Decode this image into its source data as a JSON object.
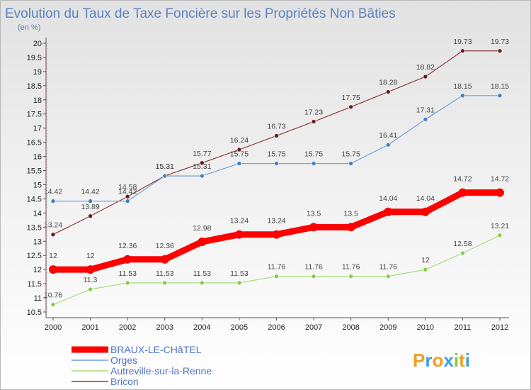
{
  "chart_data": {
    "type": "line",
    "title": "Evolution du Taux de Taxe Foncière sur les Propriétés Non Bâties",
    "subtitle": "(en %)",
    "x": [
      "2000",
      "2001",
      "2002",
      "2003",
      "2004",
      "2005",
      "2006",
      "2007",
      "2008",
      "2009",
      "2010",
      "2011",
      "2012"
    ],
    "ylim": [
      10.5,
      20
    ],
    "yticks": [
      "10.5",
      "11",
      "11.5",
      "12",
      "12.5",
      "13",
      "13.5",
      "14",
      "14.5",
      "15",
      "15.5",
      "16",
      "16.5",
      "17",
      "17.5",
      "18",
      "18.5",
      "19",
      "19.5",
      "20"
    ],
    "grid": false,
    "legend": "bottom-left",
    "series": [
      {
        "name": "Bricon",
        "color": "#8b3a3a",
        "marker": "#6b1a1a",
        "width": 1.2,
        "values": [
          13.24,
          13.89,
          14.58,
          15.31,
          15.77,
          16.24,
          16.73,
          17.23,
          17.75,
          18.28,
          18.82,
          19.73,
          19.73
        ],
        "labels": [
          "13.24",
          "13.89",
          "14.58",
          "15.31",
          "15.77",
          "16.24",
          "16.73",
          "17.23",
          "17.75",
          "18.28",
          "18.82",
          "19.73",
          "19.73"
        ]
      },
      {
        "name": "Orges",
        "color": "#6f9fd8",
        "marker": "#3f7fc8",
        "width": 1.2,
        "values": [
          14.42,
          14.42,
          14.42,
          15.31,
          15.31,
          15.75,
          15.75,
          15.75,
          15.75,
          16.41,
          17.31,
          18.15,
          18.15
        ],
        "labels": [
          "14.42",
          "14.42",
          "14.42",
          "15.31",
          "15.31",
          "15.75",
          "15.75",
          "15.75",
          "15.75",
          "16.41",
          "17.31",
          "18.15",
          "18.15"
        ]
      },
      {
        "name": "Autreville-sur-la-Renne",
        "color": "#a8dc7a",
        "marker": "#88cc4a",
        "width": 1.2,
        "values": [
          10.76,
          11.3,
          11.53,
          11.53,
          11.53,
          11.53,
          11.76,
          11.76,
          11.76,
          11.76,
          12,
          12.58,
          13.21
        ],
        "labels": [
          "10.76",
          "11.3",
          "11.53",
          "11.53",
          "11.53",
          "11.53",
          "11.76",
          "11.76",
          "11.76",
          "11.76",
          "12",
          "12.58",
          "13.21"
        ]
      },
      {
        "name": "BRAUX-LE-CHâTEL",
        "color": "#ff0000",
        "marker": "#ff0000",
        "width": 9,
        "values": [
          12,
          12,
          12.36,
          12.36,
          12.98,
          13.24,
          13.24,
          13.5,
          13.5,
          14.04,
          14.04,
          14.72,
          14.72
        ],
        "labels": [
          "12",
          "12",
          "12.36",
          "12.36",
          "12.98",
          "13.24",
          "13.24",
          "13.5",
          "13.5",
          "14.04",
          "14.04",
          "14.72",
          "14.72"
        ]
      }
    ],
    "legend_order": [
      "BRAUX-LE-CHâTEL",
      "Orges",
      "Autreville-sur-la-Renne",
      "Bricon"
    ]
  },
  "logo": {
    "parts": [
      "P",
      "r",
      "o",
      "x",
      "i",
      "t",
      "i"
    ],
    "colors": [
      "#f0a020",
      "#3aa0e0",
      "#f0a020",
      "#3aa0e0",
      "#8cc63e",
      "#f0a020",
      "#3aa0e0"
    ]
  }
}
